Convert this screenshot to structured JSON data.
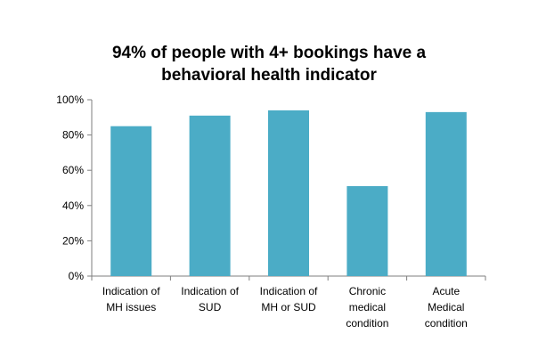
{
  "chart_data": {
    "type": "bar",
    "title_lines": [
      "94% of people with 4+ bookings have a",
      "behavioral health indicator"
    ],
    "categories": [
      [
        "Indication of",
        "MH issues"
      ],
      [
        "Indication of",
        "SUD"
      ],
      [
        "Indication of",
        "MH or SUD"
      ],
      [
        "Chronic",
        "medical",
        "condition"
      ],
      [
        "Acute",
        "Medical",
        "condition"
      ]
    ],
    "values": [
      85,
      91,
      94,
      51,
      93
    ],
    "ylim": [
      0,
      100
    ],
    "yticks": [
      "0%",
      "20%",
      "40%",
      "60%",
      "80%",
      "100%"
    ],
    "xlabel": "",
    "ylabel": "",
    "grid": false,
    "legend": "none",
    "bar_color": "#4BACC6",
    "axis_color": "#7F7F7F"
  }
}
